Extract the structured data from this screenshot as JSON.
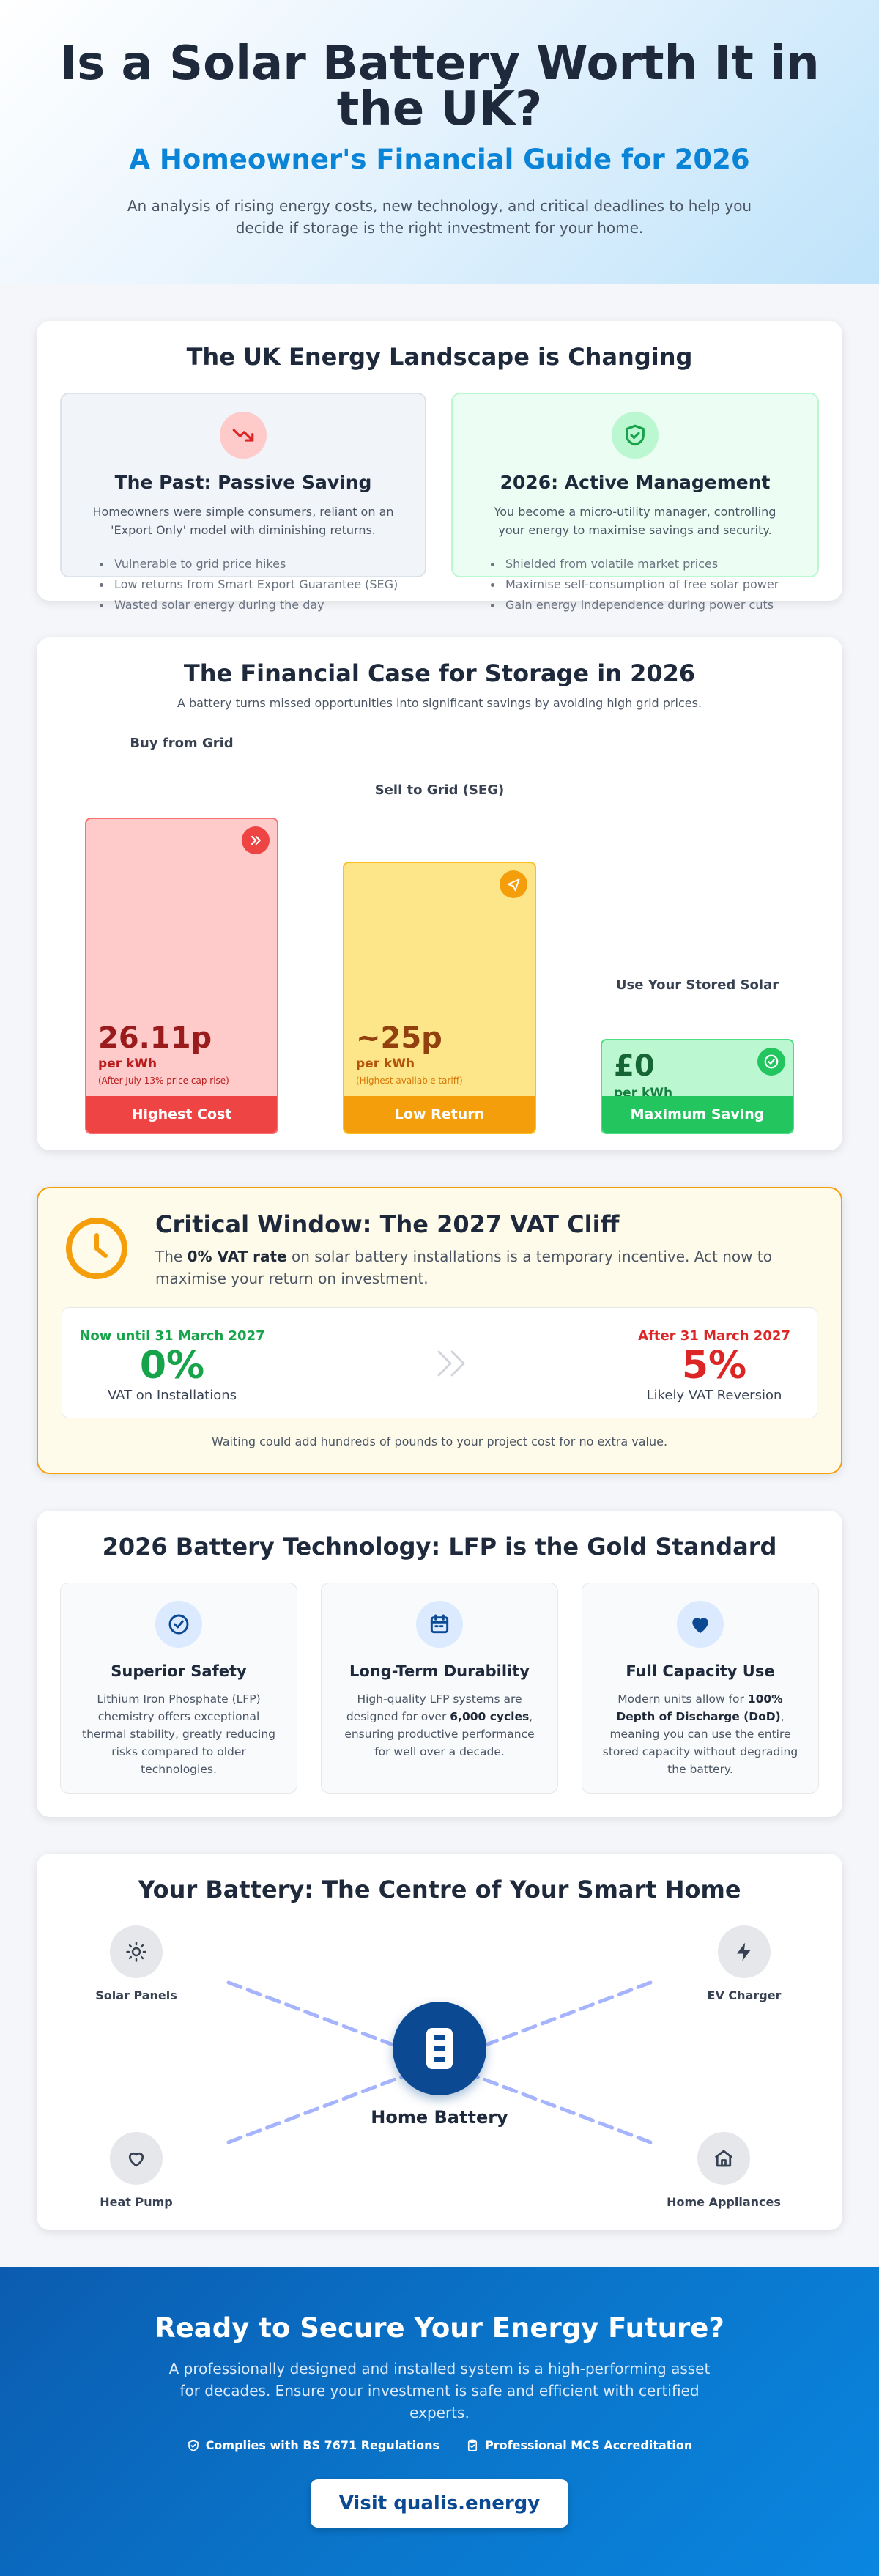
{
  "hero": {
    "title": "Is a Solar Battery Worth It in the UK?",
    "subtitle": "A Homeowner's Financial Guide for 2026",
    "intro": "An analysis of rising energy costs, new technology, and critical deadlines to help you decide if storage is the right investment for your home."
  },
  "landscape": {
    "title": "The UK Energy Landscape is Changing",
    "past": {
      "icon": "trending-down-icon",
      "title": "The Past: Passive Saving",
      "desc": "Homeowners were simple consumers, reliant on an 'Export Only' model with diminishing returns.",
      "bullets": [
        "Vulnerable to grid price hikes",
        "Low returns from Smart Export Guarantee (SEG)",
        "Wasted solar energy during the day"
      ]
    },
    "future": {
      "icon": "shield-check-icon",
      "title": "2026: Active Management",
      "desc": "You become a micro-utility manager, controlling your energy to maximise savings and security.",
      "bullets": [
        "Shielded from volatile market prices",
        "Maximise self-consumption of free solar power",
        "Gain energy independence during power cuts"
      ]
    }
  },
  "financial": {
    "title": "The Financial Case for Storage in 2026",
    "subtitle": "A battery turns missed opportunities into significant savings by avoiding high grid prices.",
    "bars": [
      {
        "label": "Buy from Grid",
        "value": "26.11p",
        "unit": "per kWh",
        "note": "(After July 13% price cap rise)",
        "footer": "Highest Cost",
        "level": 1.0,
        "icon": "chevrons-right-icon",
        "color": "#ef4444"
      },
      {
        "label": "Sell to Grid (SEG)",
        "value": "~25p",
        "unit": "per kWh",
        "note": "(Highest available tariff)",
        "footer": "Low Return",
        "level": 0.86,
        "icon": "plane-icon",
        "color": "#f59e0b"
      },
      {
        "label": "Use Your Stored Solar",
        "value": "£0",
        "unit": "per kWh",
        "note": "",
        "footer": "Maximum Saving",
        "level": 0.3,
        "icon": "check-circle-icon",
        "color": "#22c55e"
      }
    ]
  },
  "vat": {
    "title": "Critical Window: The 2027 VAT Cliff",
    "desc_pre": "The ",
    "desc_bold": "0% VAT rate",
    "desc_post": " on solar battery installations is a temporary incentive. Act now to maximise your return on investment.",
    "now_label": "Now until 31 March 2027",
    "now_value": "0%",
    "now_caption": "VAT on Installations",
    "after_label": "After 31 March 2027",
    "after_value": "5%",
    "after_caption": "Likely VAT Reversion",
    "footer": "Waiting could add hundreds of pounds to your project cost for no extra value."
  },
  "tech": {
    "title": "2026 Battery Technology: LFP is the Gold Standard",
    "items": [
      {
        "icon": "check-circle-icon",
        "title": "Superior Safety",
        "text": "Lithium Iron Phosphate (LFP) chemistry offers exceptional thermal stability, greatly reducing risks compared to older technologies."
      },
      {
        "icon": "calendar-icon",
        "title": "Long-Term Durability",
        "pre": "High-quality LFP systems are designed for over ",
        "bold": "6,000 cycles",
        "post": ", ensuring productive performance for well over a decade."
      },
      {
        "icon": "heart-icon",
        "title": "Full Capacity Use",
        "pre": "Modern units allow for ",
        "bold": "100% Depth of Discharge (DoD)",
        "post": ", meaning you can use the entire stored capacity without degrading the battery."
      }
    ]
  },
  "smarthome": {
    "title": "Your Battery: The Centre of Your Smart Home",
    "center": "Home Battery",
    "nodes": [
      {
        "icon": "sun-icon",
        "label": "Solar Panels"
      },
      {
        "icon": "lightning-icon",
        "label": "EV Charger"
      },
      {
        "icon": "heart-icon",
        "label": "Heat Pump"
      },
      {
        "icon": "home-icon",
        "label": "Home Appliances"
      }
    ]
  },
  "cta": {
    "title": "Ready to Secure Your Energy Future?",
    "text": "A professionally designed and installed system is a high-performing asset for decades. Ensure your investment is safe and efficient with certified experts.",
    "cert1": "Complies with BS 7671 Regulations",
    "cert2": "Professional MCS Accreditation",
    "button": "Visit qualis.energy"
  },
  "colors": {
    "accent": "#0a84d6",
    "danger": "#ef4444",
    "warning": "#f59e0b",
    "success": "#22c55e",
    "navy": "#0b4a93"
  }
}
